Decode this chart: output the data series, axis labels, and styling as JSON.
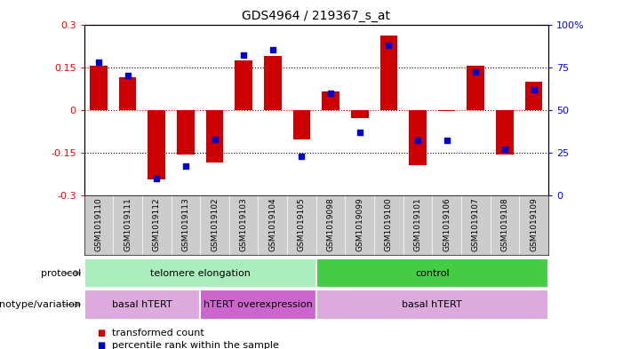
{
  "title": "GDS4964 / 219367_s_at",
  "samples": [
    "GSM1019110",
    "GSM1019111",
    "GSM1019112",
    "GSM1019113",
    "GSM1019102",
    "GSM1019103",
    "GSM1019104",
    "GSM1019105",
    "GSM1019098",
    "GSM1019099",
    "GSM1019100",
    "GSM1019101",
    "GSM1019106",
    "GSM1019107",
    "GSM1019108",
    "GSM1019109"
  ],
  "transformed_count": [
    0.155,
    0.115,
    -0.245,
    -0.155,
    -0.185,
    0.175,
    0.19,
    -0.105,
    0.065,
    -0.03,
    0.26,
    -0.195,
    -0.005,
    0.155,
    -0.155,
    0.1
  ],
  "percentile_rank": [
    78,
    70,
    10,
    17,
    33,
    82,
    85,
    23,
    60,
    37,
    88,
    32,
    32,
    72,
    27,
    62
  ],
  "ylim_left": [
    -0.3,
    0.3
  ],
  "ylim_right": [
    0,
    100
  ],
  "bar_color": "#cc0000",
  "dot_color": "#0000cc",
  "protocol_groups": [
    {
      "label": "telomere elongation",
      "start": 0,
      "end": 8,
      "color": "#aaeebb"
    },
    {
      "label": "control",
      "start": 8,
      "end": 16,
      "color": "#44cc44"
    }
  ],
  "genotype_groups": [
    {
      "label": "basal hTERT",
      "start": 0,
      "end": 4,
      "color": "#ddaadd"
    },
    {
      "label": "hTERT overexpression",
      "start": 4,
      "end": 8,
      "color": "#cc66cc"
    },
    {
      "label": "basal hTERT",
      "start": 8,
      "end": 16,
      "color": "#ddaadd"
    }
  ],
  "legend_items": [
    {
      "color": "#cc0000",
      "label": "transformed count"
    },
    {
      "color": "#0000cc",
      "label": "percentile rank within the sample"
    }
  ],
  "xlabel_protocol": "protocol",
  "xlabel_genotype": "genotype/variation",
  "dotted_line_color": "black",
  "zero_line_color": "#cc0000",
  "bg_color": "#ffffff",
  "plot_bg_color": "#ffffff",
  "tick_area_color": "#cccccc"
}
